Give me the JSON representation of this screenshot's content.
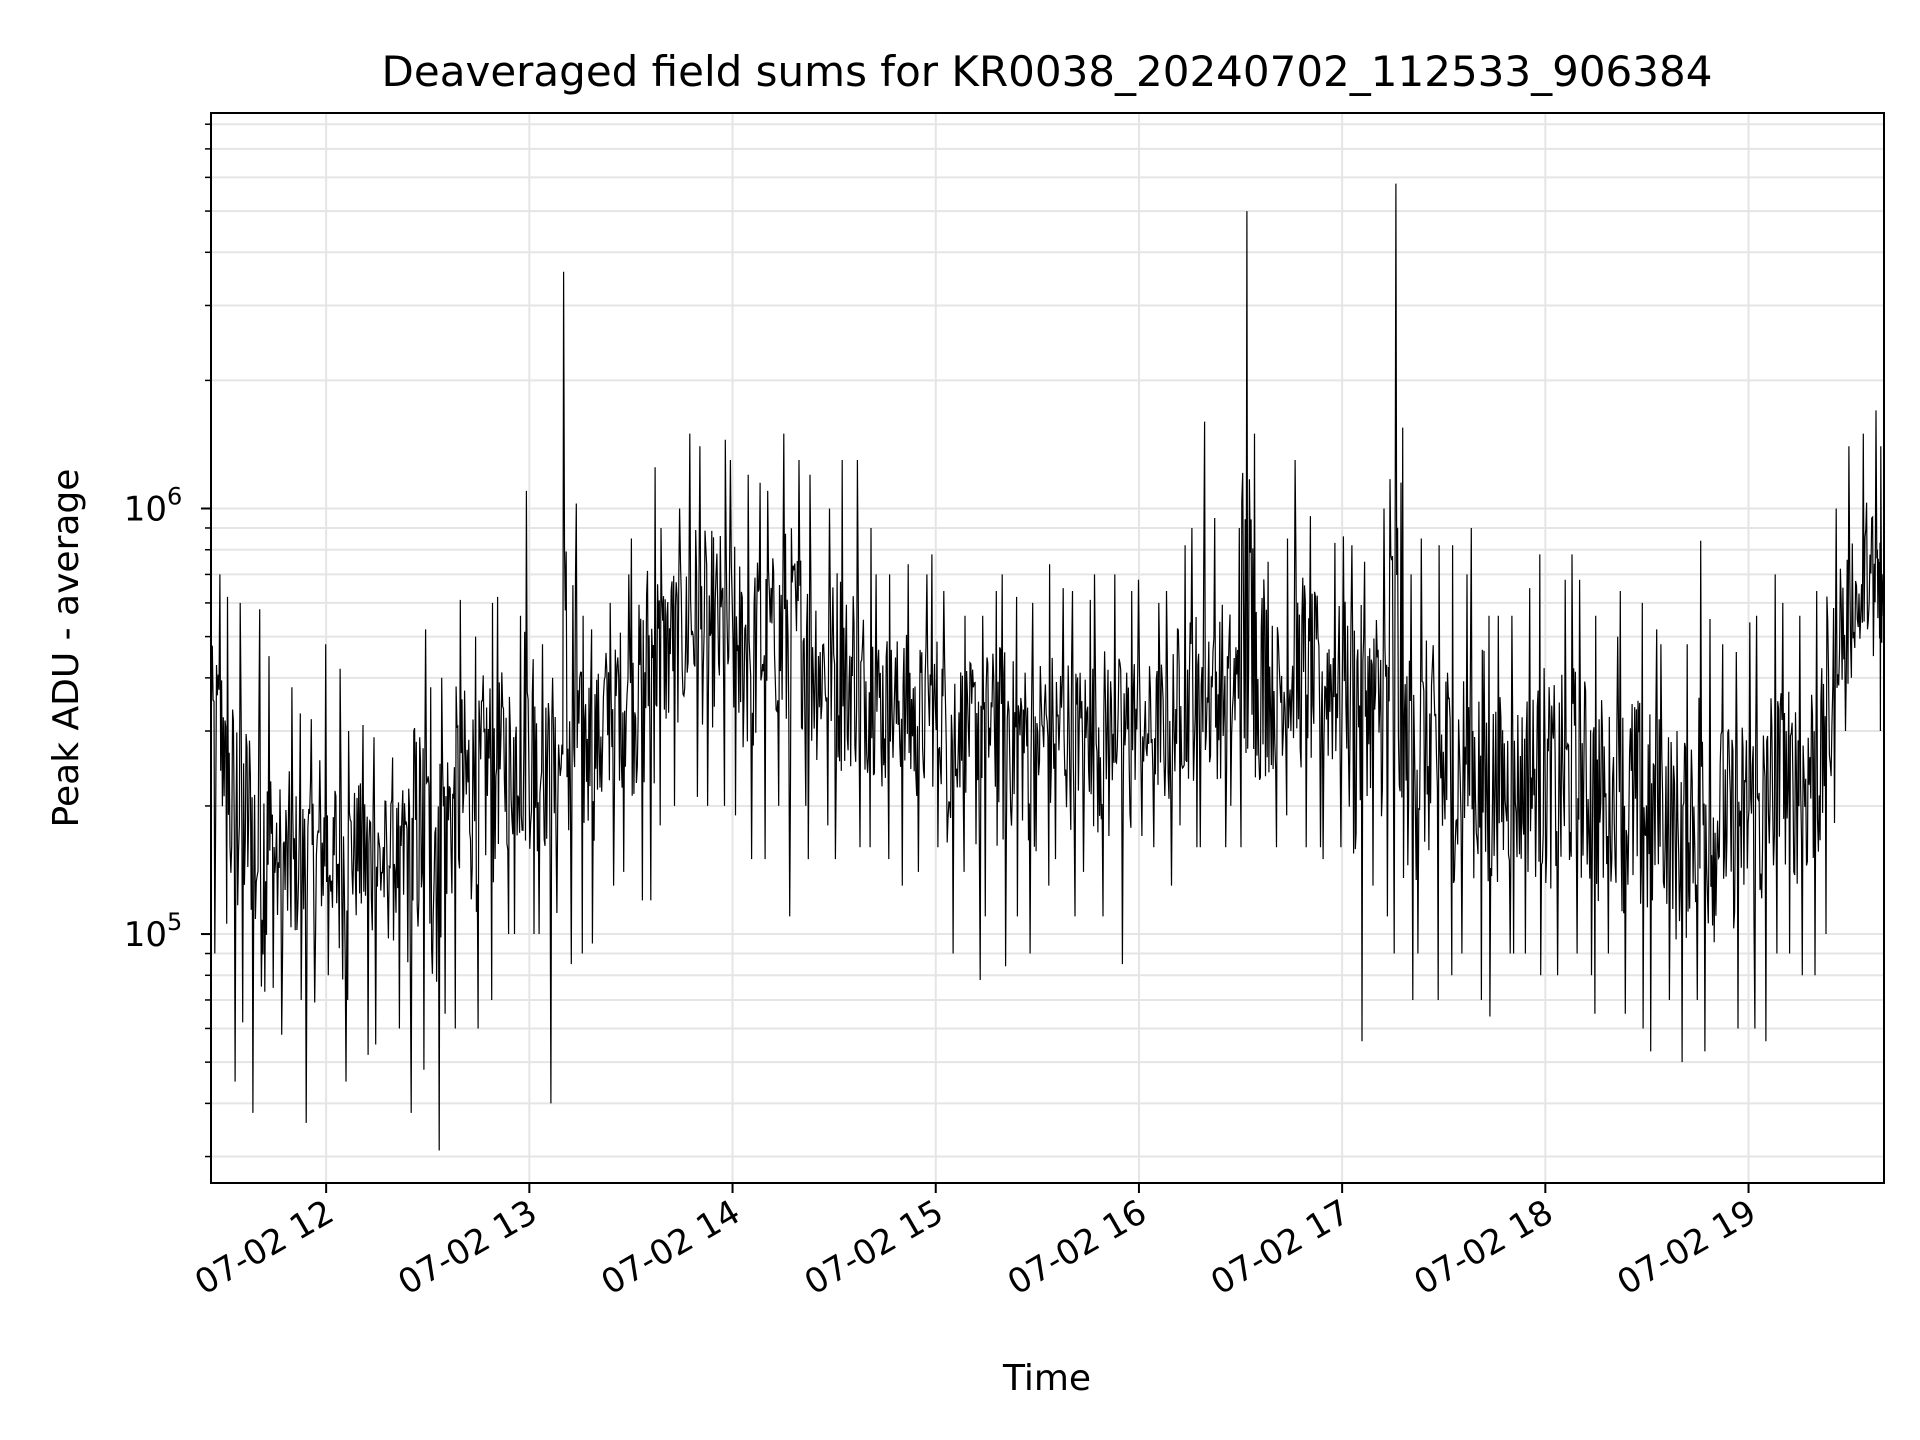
{
  "chart_data": {
    "type": "line",
    "title": "Deaveraged field sums for KR0038_20240702_112533_906384",
    "xlabel": "Time",
    "ylabel": "Peak ADU - average",
    "yscale": "log",
    "ylim": [
      26000,
      8500000
    ],
    "xlim": [
      "2024-07-02T11:26",
      "2024-07-02T19:40"
    ],
    "x_ticks": [
      {
        "value": "2024-07-02T12:00",
        "label": "07-02 12"
      },
      {
        "value": "2024-07-02T13:00",
        "label": "07-02 13"
      },
      {
        "value": "2024-07-02T14:00",
        "label": "07-02 14"
      },
      {
        "value": "2024-07-02T15:00",
        "label": "07-02 15"
      },
      {
        "value": "2024-07-02T16:00",
        "label": "07-02 16"
      },
      {
        "value": "2024-07-02T17:00",
        "label": "07-02 17"
      },
      {
        "value": "2024-07-02T18:00",
        "label": "07-02 18"
      },
      {
        "value": "2024-07-02T19:00",
        "label": "07-02 19"
      }
    ],
    "y_ticks": [
      {
        "value": 100000,
        "base": "10",
        "exp": "5"
      },
      {
        "value": 1000000,
        "base": "10",
        "exp": "6"
      }
    ],
    "grid": true,
    "line_color": "#000000",
    "series": [
      {
        "x": [
          "2024-07-02T11:26",
          "2024-07-02T11:30",
          "2024-07-02T11:34",
          "2024-07-02T11:38",
          "2024-07-02T11:42",
          "2024-07-02T11:46",
          "2024-07-02T11:50",
          "2024-07-02T11:54",
          "2024-07-02T11:58",
          "2024-07-02T12:02",
          "2024-07-02T12:06",
          "2024-07-02T12:10",
          "2024-07-02T12:14",
          "2024-07-02T12:18",
          "2024-07-02T12:22",
          "2024-07-02T12:26",
          "2024-07-02T12:30",
          "2024-07-02T12:34",
          "2024-07-02T12:38",
          "2024-07-02T12:42",
          "2024-07-02T12:46",
          "2024-07-02T12:50",
          "2024-07-02T12:54",
          "2024-07-02T12:58",
          "2024-07-02T13:02",
          "2024-07-02T13:06",
          "2024-07-02T13:10",
          "2024-07-02T13:14",
          "2024-07-02T13:18",
          "2024-07-02T13:22",
          "2024-07-02T13:26",
          "2024-07-02T13:30",
          "2024-07-02T13:34",
          "2024-07-02T13:38",
          "2024-07-02T13:42",
          "2024-07-02T13:46",
          "2024-07-02T13:50",
          "2024-07-02T13:54",
          "2024-07-02T13:58",
          "2024-07-02T14:02",
          "2024-07-02T14:06",
          "2024-07-02T14:10",
          "2024-07-02T14:14",
          "2024-07-02T14:18",
          "2024-07-02T14:22",
          "2024-07-02T14:26",
          "2024-07-02T14:30",
          "2024-07-02T14:34",
          "2024-07-02T14:38",
          "2024-07-02T14:42",
          "2024-07-02T14:46",
          "2024-07-02T14:50",
          "2024-07-02T14:54",
          "2024-07-02T14:58",
          "2024-07-02T15:02",
          "2024-07-02T15:06",
          "2024-07-02T15:10",
          "2024-07-02T15:14",
          "2024-07-02T15:18",
          "2024-07-02T15:22",
          "2024-07-02T15:26",
          "2024-07-02T15:30",
          "2024-07-02T15:34",
          "2024-07-02T15:38",
          "2024-07-02T15:42",
          "2024-07-02T15:46",
          "2024-07-02T15:50",
          "2024-07-02T15:54",
          "2024-07-02T15:58",
          "2024-07-02T16:02",
          "2024-07-02T16:06",
          "2024-07-02T16:10",
          "2024-07-02T16:14",
          "2024-07-02T16:18",
          "2024-07-02T16:22",
          "2024-07-02T16:26",
          "2024-07-02T16:30",
          "2024-07-02T16:34",
          "2024-07-02T16:38",
          "2024-07-02T16:42",
          "2024-07-02T16:46",
          "2024-07-02T16:50",
          "2024-07-02T16:54",
          "2024-07-02T16:58",
          "2024-07-02T17:02",
          "2024-07-02T17:06",
          "2024-07-02T17:10",
          "2024-07-02T17:14",
          "2024-07-02T17:18",
          "2024-07-02T17:22",
          "2024-07-02T17:26",
          "2024-07-02T17:30",
          "2024-07-02T17:34",
          "2024-07-02T17:38",
          "2024-07-02T17:42",
          "2024-07-02T17:46",
          "2024-07-02T17:50",
          "2024-07-02T17:54",
          "2024-07-02T17:58",
          "2024-07-02T18:02",
          "2024-07-02T18:06",
          "2024-07-02T18:10",
          "2024-07-02T18:14",
          "2024-07-02T18:18",
          "2024-07-02T18:22",
          "2024-07-02T18:26",
          "2024-07-02T18:30",
          "2024-07-02T18:34",
          "2024-07-02T18:38",
          "2024-07-02T18:42",
          "2024-07-02T18:46",
          "2024-07-02T18:50",
          "2024-07-02T18:54",
          "2024-07-02T18:58",
          "2024-07-02T19:02",
          "2024-07-02T19:06",
          "2024-07-02T19:10",
          "2024-07-02T19:14",
          "2024-07-02T19:18",
          "2024-07-02T19:22",
          "2024-07-02T19:26",
          "2024-07-02T19:30",
          "2024-07-02T19:34",
          "2024-07-02T19:38"
        ],
        "high": [
          700000,
          620000,
          600000,
          580000,
          450000,
          380000,
          330000,
          320000,
          480000,
          420000,
          300000,
          310000,
          290000,
          260000,
          300000,
          520000,
          380000,
          400000,
          610000,
          500000,
          600000,
          620000,
          560000,
          1100000,
          480000,
          400000,
          3600000,
          560000,
          520000,
          600000,
          700000,
          850000,
          1250000,
          900000,
          1000000,
          1500000,
          1400000,
          1450000,
          1300000,
          1200000,
          1150000,
          1100000,
          1500000,
          1300000,
          1200000,
          1000000,
          1300000,
          1300000,
          900000,
          700000,
          700000,
          740000,
          700000,
          780000,
          640000,
          560000,
          560000,
          640000,
          700000,
          620000,
          600000,
          740000,
          650000,
          640000,
          610000,
          700000,
          700000,
          640000,
          680000,
          600000,
          640000,
          820000,
          900000,
          1600000,
          950000,
          900000,
          5000000,
          1500000,
          750000,
          850000,
          1300000,
          960000,
          830000,
          860000,
          820000,
          750000,
          1000000,
          5800000,
          700000,
          850000,
          820000,
          820000,
          700000,
          900000,
          560000,
          560000,
          560000,
          650000,
          780000,
          680000,
          780000,
          680000,
          560000,
          500000,
          640000,
          600000,
          520000,
          480000,
          480000,
          840000,
          550000,
          480000,
          460000,
          540000,
          560000,
          700000,
          600000,
          560000,
          640000,
          1000000,
          1400000,
          1500000,
          1700000,
          1400000
        ],
        "low": [
          90000,
          45000,
          62000,
          38000,
          40000,
          58000,
          70000,
          36000,
          80000,
          45000,
          70000,
          52000,
          55000,
          60000,
          38000,
          48000,
          31000,
          65000,
          60000,
          60000,
          70000,
          100000,
          100000,
          100000,
          100000,
          40000,
          85000,
          90000,
          95000,
          130000,
          140000,
          120000,
          120000,
          180000,
          200000,
          210000,
          200000,
          200000,
          190000,
          150000,
          150000,
          200000,
          110000,
          200000,
          150000,
          180000,
          150000,
          160000,
          160000,
          130000,
          150000,
          130000,
          140000,
          160000,
          90000,
          140000,
          78000,
          110000,
          84000,
          110000,
          90000,
          130000,
          150000,
          110000,
          140000,
          110000,
          170000,
          85000,
          170000,
          160000,
          130000,
          180000,
          160000,
          160000,
          160000,
          200000,
          160000,
          150000,
          160000,
          190000,
          160000,
          160000,
          150000,
          160000,
          56000,
          130000,
          110000,
          90000,
          70000,
          90000,
          70000,
          80000,
          90000,
          70000,
          64000,
          90000,
          90000,
          90000,
          80000,
          80000,
          90000,
          80000,
          65000,
          90000,
          65000,
          60000,
          53000,
          70000,
          50000,
          70000,
          53000,
          68000,
          60000,
          60000,
          56000,
          90000,
          90000,
          80000,
          80000,
          100000,
          300000,
          400000,
          450000,
          300000
        ],
        "mid": [
          300000,
          200000,
          180000,
          160000,
          150000,
          140000,
          140000,
          150000,
          150000,
          150000,
          160000,
          160000,
          150000,
          160000,
          170000,
          180000,
          180000,
          200000,
          220000,
          240000,
          260000,
          260000,
          270000,
          270000,
          260000,
          260000,
          280000,
          300000,
          320000,
          360000,
          380000,
          400000,
          450000,
          500000,
          520000,
          550000,
          520000,
          500000,
          480000,
          480000,
          500000,
          520000,
          520000,
          500000,
          460000,
          440000,
          420000,
          400000,
          380000,
          360000,
          340000,
          330000,
          320000,
          320000,
          320000,
          330000,
          330000,
          320000,
          310000,
          300000,
          300000,
          300000,
          310000,
          310000,
          300000,
          300000,
          300000,
          300000,
          310000,
          300000,
          310000,
          330000,
          350000,
          360000,
          360000,
          360000,
          360000,
          370000,
          380000,
          380000,
          390000,
          390000,
          400000,
          400000,
          400000,
          380000,
          350000,
          320000,
          280000,
          260000,
          250000,
          240000,
          240000,
          240000,
          230000,
          220000,
          220000,
          220000,
          220000,
          220000,
          220000,
          220000,
          220000,
          210000,
          200000,
          200000,
          200000,
          200000,
          190000,
          190000,
          190000,
          190000,
          190000,
          190000,
          200000,
          210000,
          220000,
          230000,
          260000,
          350000,
          480000,
          560000,
          620000,
          620000
        ]
      }
    ]
  }
}
